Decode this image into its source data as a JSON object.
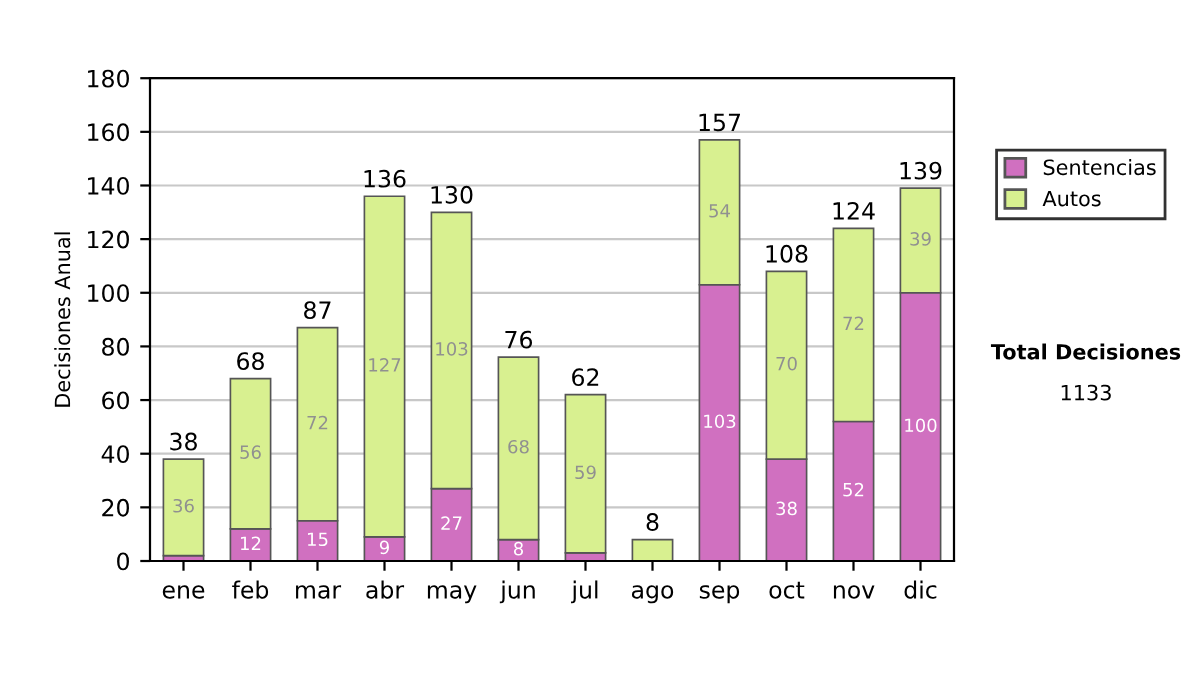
{
  "chart_data": {
    "type": "bar",
    "stacked": true,
    "ylabel": "Decisiones Anual",
    "categories": [
      "ene",
      "feb",
      "mar",
      "abr",
      "may",
      "jun",
      "jul",
      "ago",
      "sep",
      "oct",
      "nov",
      "dic"
    ],
    "series": [
      {
        "name": "Sentencias",
        "color": "#d070c0",
        "values": [
          2,
          12,
          15,
          9,
          27,
          8,
          3,
          0,
          103,
          38,
          52,
          100
        ],
        "value_labels": [
          null,
          "12",
          "15",
          "9",
          "27",
          "8",
          null,
          null,
          "103",
          "38",
          "52",
          "100"
        ]
      },
      {
        "name": "Autos",
        "color": "#d8f090",
        "values": [
          36,
          56,
          72,
          127,
          103,
          68,
          59,
          8,
          54,
          70,
          72,
          39
        ],
        "value_labels": [
          "36",
          "56",
          "72",
          "127",
          "103",
          "68",
          "59",
          null,
          "54",
          "70",
          "72",
          "39"
        ]
      }
    ],
    "totals": [
      "38",
      "68",
      "87",
      "136",
      "130",
      "76",
      "62",
      "8",
      "157",
      "108",
      "124",
      "139"
    ],
    "ylim": [
      0,
      180
    ],
    "yticks": [
      0,
      20,
      40,
      60,
      80,
      100,
      120,
      140,
      160,
      180
    ],
    "grid": "y",
    "legend": "right",
    "annotations": [
      "Total Decisiones",
      "1133"
    ]
  }
}
